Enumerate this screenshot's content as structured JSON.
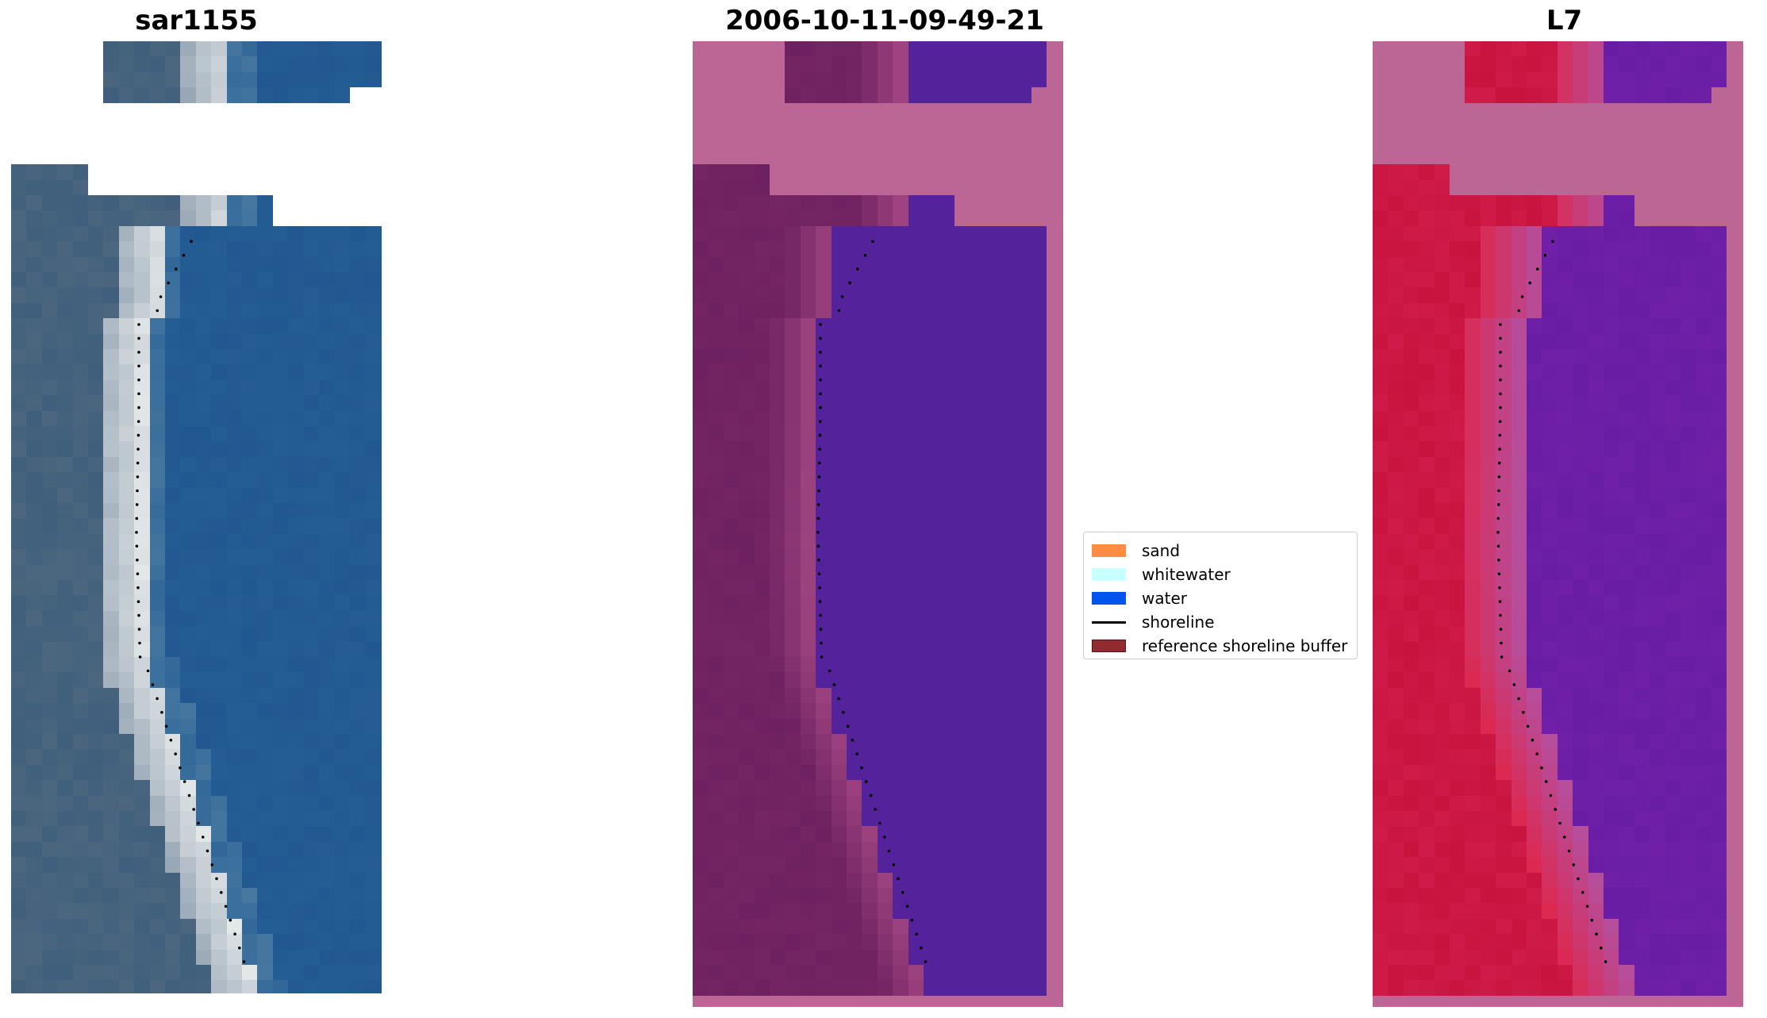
{
  "panels": [
    {
      "title": "sar1155"
    },
    {
      "title": "2006-10-11-09-49-21"
    },
    {
      "title": "L7"
    }
  ],
  "legend": {
    "items": [
      {
        "label": "sand",
        "color": "#ff8c42",
        "kind": "patch"
      },
      {
        "label": "whitewater",
        "color": "#c8ffff",
        "kind": "patch"
      },
      {
        "label": "water",
        "color": "#0055ee",
        "kind": "patch"
      },
      {
        "label": "shoreline",
        "color": "#000000",
        "kind": "line"
      },
      {
        "label": "reference shoreline buffer",
        "color": "#922b2f",
        "kind": "patch",
        "edge": "#5a1418"
      }
    ]
  },
  "colors": {
    "rgb_water": "#245d94",
    "rgb_land": "#3f5f7c",
    "rgb_beach": "#e8ecec",
    "class_nodata": "#bb6694",
    "class_land": "#6e2160",
    "class_water": "#54229a",
    "class_buffer_overlap": "#c23c53",
    "index_land": "#c8133e",
    "index_water": "#7020a8",
    "index_nodata": "#bb6694"
  }
}
